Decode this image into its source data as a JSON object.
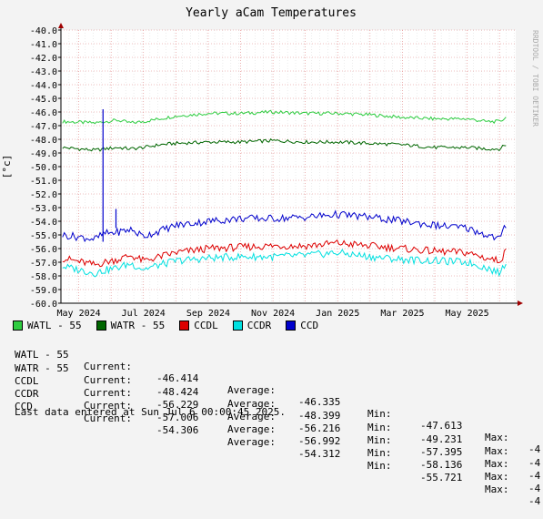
{
  "colors": {
    "background": "#f3f3f3",
    "plot_bg": "#ffffff",
    "grid_major": "#e08080",
    "grid_minor": "#d8d8d8",
    "axis": "#000000",
    "arrow": "#a00000"
  },
  "chart_data": {
    "type": "line",
    "title": "Yearly aCam Temperatures",
    "ylabel": "[°c]",
    "watermark": "RRDTOOL / TOBI OETIKER",
    "ylim": [
      -60.0,
      -40.0
    ],
    "yticks": [
      "-40.0",
      "-41.0",
      "-42.0",
      "-43.0",
      "-44.0",
      "-45.0",
      "-46.0",
      "-47.0",
      "-48.0",
      "-49.0",
      "-50.0",
      "-51.0",
      "-52.0",
      "-53.0",
      "-54.0",
      "-55.0",
      "-56.0",
      "-57.0",
      "-58.0",
      "-59.0",
      "-60.0"
    ],
    "xlabels": [
      "May 2024",
      "Jul 2024",
      "Sep 2024",
      "Nov 2024",
      "Jan 2025",
      "Mar 2025",
      "May 2025"
    ],
    "xlabel_positions": [
      1,
      3,
      5,
      7,
      9,
      11,
      13
    ],
    "xlim": [
      0.45,
      14.5
    ],
    "x": [
      0.5,
      1.5,
      1.8,
      2.2,
      2.6,
      3.0,
      3.5,
      4.0,
      5.0,
      6.0,
      7.0,
      8.0,
      9.0,
      10.0,
      11.0,
      12.0,
      13.0,
      13.6,
      14.0,
      14.2
    ],
    "series": [
      {
        "name": "WATL - 55",
        "color": "#2ecc40",
        "values": [
          -46.7,
          -46.8,
          -46.7,
          -46.6,
          -46.8,
          -46.7,
          -46.5,
          -46.3,
          -46.1,
          -46.1,
          -46.0,
          -46.1,
          -46.1,
          -46.2,
          -46.4,
          -46.5,
          -46.5,
          -46.7,
          -46.7,
          -46.4
        ]
      },
      {
        "name": "WATR - 55",
        "color": "#006600",
        "values": [
          -48.6,
          -48.8,
          -48.7,
          -48.6,
          -48.7,
          -48.6,
          -48.4,
          -48.3,
          -48.2,
          -48.2,
          -48.1,
          -48.2,
          -48.2,
          -48.3,
          -48.4,
          -48.6,
          -48.6,
          -48.7,
          -48.7,
          -48.4
        ]
      },
      {
        "name": "CCDL",
        "color": "#dd0000",
        "values": [
          -56.7,
          -57.2,
          -57.0,
          -56.8,
          -56.5,
          -56.9,
          -56.6,
          -56.3,
          -56.0,
          -55.9,
          -55.8,
          -55.8,
          -55.6,
          -55.8,
          -56.0,
          -56.2,
          -56.3,
          -56.7,
          -56.9,
          -56.2
        ]
      },
      {
        "name": "CCDR",
        "color": "#00e0e0",
        "values": [
          -57.3,
          -57.8,
          -57.6,
          -57.4,
          -57.1,
          -57.5,
          -57.2,
          -56.9,
          -56.7,
          -56.6,
          -56.6,
          -56.5,
          -56.3,
          -56.6,
          -56.8,
          -56.9,
          -57.0,
          -57.4,
          -57.8,
          -57.0
        ]
      },
      {
        "name": "CCD",
        "color": "#0000cc",
        "values": [
          -55.0,
          -55.3,
          -54.9,
          -54.8,
          -54.6,
          -55.1,
          -54.7,
          -54.3,
          -54.0,
          -53.8,
          -53.8,
          -53.7,
          -53.5,
          -53.7,
          -54.0,
          -54.3,
          -54.5,
          -55.0,
          -55.3,
          -54.3
        ]
      }
    ],
    "annotations": [
      {
        "series": "CCD",
        "x": 1.75,
        "y_from": -55.5,
        "y_to": -45.8,
        "label": "spike"
      },
      {
        "series": "CCD",
        "x": 2.15,
        "y_from": -54.5,
        "y_to": -53.1,
        "label": "spike"
      },
      {
        "series": "WATL - 55",
        "x": 1.75,
        "y_from": -46.7,
        "y_to": -46.7,
        "label": ""
      }
    ],
    "grid": true,
    "legend_position": "bottom"
  },
  "legend": [
    {
      "name": "WATL - 55",
      "color": "#2ecc40"
    },
    {
      "name": "WATR - 55",
      "color": "#006600"
    },
    {
      "name": "CCDL",
      "color": "#dd0000"
    },
    {
      "name": "CCDR",
      "color": "#00e0e0"
    },
    {
      "name": "CCD",
      "color": "#0000cc"
    }
  ],
  "stats": {
    "label_current": "Current:",
    "label_average": "Average:",
    "label_min": "Min:",
    "label_max": "Max:",
    "rows": [
      {
        "name": "WATL - 55",
        "current": "-46.414",
        "average": "-46.335",
        "min": "-47.613",
        "max": "-4"
      },
      {
        "name": "WATR - 55",
        "current": "-48.424",
        "average": "-48.399",
        "min": "-49.231",
        "max": "-4"
      },
      {
        "name": "CCDL",
        "current": "-56.229",
        "average": "-56.216",
        "min": "-57.395",
        "max": "-4"
      },
      {
        "name": "CCDR",
        "current": "-57.006",
        "average": "-56.992",
        "min": "-58.136",
        "max": "-4"
      },
      {
        "name": "CCD",
        "current": "-54.306",
        "average": "-54.312",
        "min": "-55.721",
        "max": "-4"
      }
    ]
  },
  "footer": "Last data entered at Sun Jul  6 00:00:45 2025."
}
